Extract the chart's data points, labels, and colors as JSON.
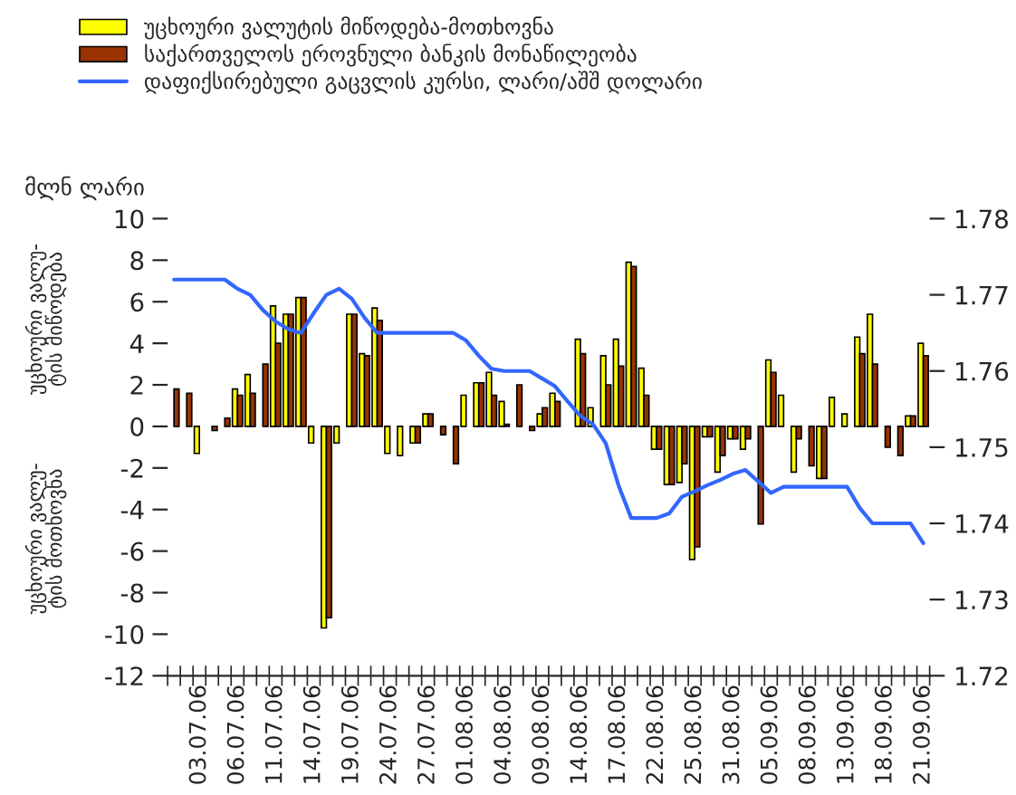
{
  "chart_data": {
    "type": "bar",
    "ylabel": "მლნ ლარი",
    "annotations": [
      "უცხოური ვალუ-\nტის მიწოდება",
      "უცხოური ვალუ-\nტის მოთხოვნა"
    ],
    "categories": [
      null,
      null,
      "03.07.06",
      null,
      null,
      "06.07.06",
      null,
      null,
      "11.07.06",
      null,
      null,
      "14.07.06",
      null,
      null,
      "19.07.06",
      null,
      null,
      "24.07.06",
      null,
      null,
      "27.07.06",
      null,
      null,
      "01.08.06",
      null,
      null,
      "04.08.06",
      null,
      null,
      "09.08.06",
      null,
      null,
      "14.08.06",
      null,
      null,
      "17.08.06",
      null,
      null,
      "22.08.06",
      null,
      null,
      "25.08.06",
      null,
      null,
      "31.08.06",
      null,
      null,
      "05.09.06",
      null,
      null,
      "08.09.06",
      null,
      null,
      "13.09.06",
      null,
      null,
      "18.09.06",
      null,
      null,
      "21.09.06"
    ],
    "series": [
      {
        "name": "უცხოური ვალუტის მიწოდება-მოთხოვნა",
        "color": "#ffff00",
        "values": [
          null,
          null,
          -1.3,
          null,
          null,
          1.8,
          2.5,
          null,
          5.8,
          5.4,
          6.2,
          -0.8,
          -9.7,
          -0.8,
          5.4,
          3.5,
          5.7,
          -1.3,
          -1.4,
          -0.8,
          0.6,
          null,
          null,
          1.5,
          2.1,
          2.6,
          1.2,
          null,
          null,
          0.6,
          1.6,
          null,
          4.2,
          0.9,
          3.4,
          4.2,
          7.9,
          2.8,
          -1.1,
          -2.8,
          -2.7,
          -6.4,
          -0.5,
          -2.2,
          -0.6,
          -1.1,
          null,
          3.2,
          1.5,
          -2.2,
          null,
          -2.5,
          1.4,
          0.6,
          4.3,
          5.4,
          null,
          null,
          0.5,
          4.0
        ]
      },
      {
        "name": "საქართველოს ეროვნული ბანკის მონაწილეობა",
        "color": "#993300",
        "values": [
          1.8,
          1.6,
          null,
          -0.2,
          0.4,
          1.5,
          1.6,
          3.0,
          4.0,
          5.4,
          6.2,
          null,
          -9.2,
          null,
          5.4,
          3.4,
          5.1,
          null,
          null,
          -0.8,
          0.6,
          -0.4,
          -1.8,
          null,
          2.1,
          1.5,
          0.1,
          2.0,
          -0.2,
          0.9,
          1.2,
          null,
          3.5,
          null,
          2.0,
          2.9,
          7.7,
          1.5,
          -1.1,
          -2.8,
          -1.8,
          -5.8,
          -0.5,
          -1.4,
          -0.6,
          -0.6,
          -4.7,
          2.6,
          null,
          -0.6,
          -1.9,
          -2.5,
          null,
          null,
          3.5,
          3.0,
          -1.0,
          -1.4,
          0.5,
          3.4
        ]
      },
      {
        "name": "დაფიქსირებული გაცვლის კურსი, ლარი/აშშ დოლარი",
        "type": "line",
        "axis": "y2",
        "color": "#3366ff",
        "values": [
          1.772,
          1.772,
          1.772,
          1.772,
          1.772,
          1.7708,
          1.77,
          1.768,
          1.7665,
          1.7655,
          1.765,
          1.7676,
          1.77,
          1.7708,
          1.7695,
          1.767,
          1.765,
          1.765,
          1.765,
          1.765,
          1.765,
          1.765,
          1.765,
          1.764,
          1.762,
          1.7603,
          1.76,
          1.76,
          1.76,
          1.759,
          1.758,
          1.756,
          1.7541,
          1.753,
          1.7505,
          1.745,
          1.7407,
          1.7407,
          1.7407,
          1.7413,
          1.7435,
          1.7442,
          1.745,
          1.7457,
          1.7465,
          1.747,
          1.7455,
          1.744,
          1.7448,
          1.7448,
          1.7448,
          1.7448,
          1.7448,
          1.7448,
          1.742,
          1.74,
          1.74,
          1.74,
          1.74,
          1.7374
        ]
      }
    ],
    "ylim": [
      -12,
      10
    ],
    "yticks": [
      -12,
      -10,
      -8,
      -6,
      -4,
      -2,
      0,
      2,
      4,
      6,
      8,
      10
    ],
    "y2lim": [
      1.72,
      1.78
    ],
    "y2ticks": [
      1.72,
      1.73,
      1.74,
      1.75,
      1.76,
      1.77,
      1.78
    ],
    "grid": false,
    "legend": "top left"
  }
}
